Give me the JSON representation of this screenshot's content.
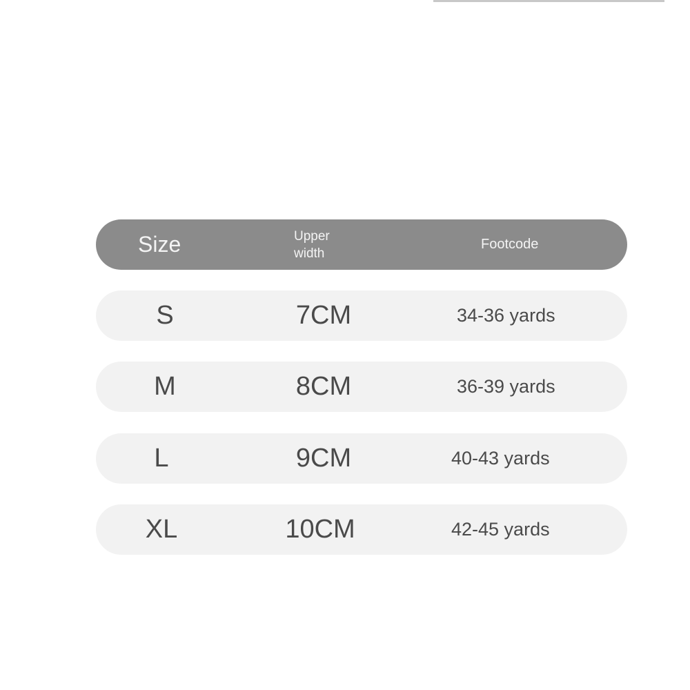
{
  "header": {
    "size": "Size",
    "upper_width": "Upper width",
    "footcode": "Footcode"
  },
  "rows": [
    {
      "size": "S",
      "upper_width": "7CM",
      "footcode": "34-36 yards"
    },
    {
      "size": "M",
      "upper_width": "8CM",
      "footcode": "36-39 yards"
    },
    {
      "size": "L",
      "upper_width": "9CM",
      "footcode": "40-43 yards"
    },
    {
      "size": "XL",
      "upper_width": "10CM",
      "footcode": "42-45 yards"
    }
  ],
  "colors": {
    "header_bg": "#8b8b8b",
    "row_bg": "#f2f2f2",
    "text": "#4a4a4a"
  }
}
